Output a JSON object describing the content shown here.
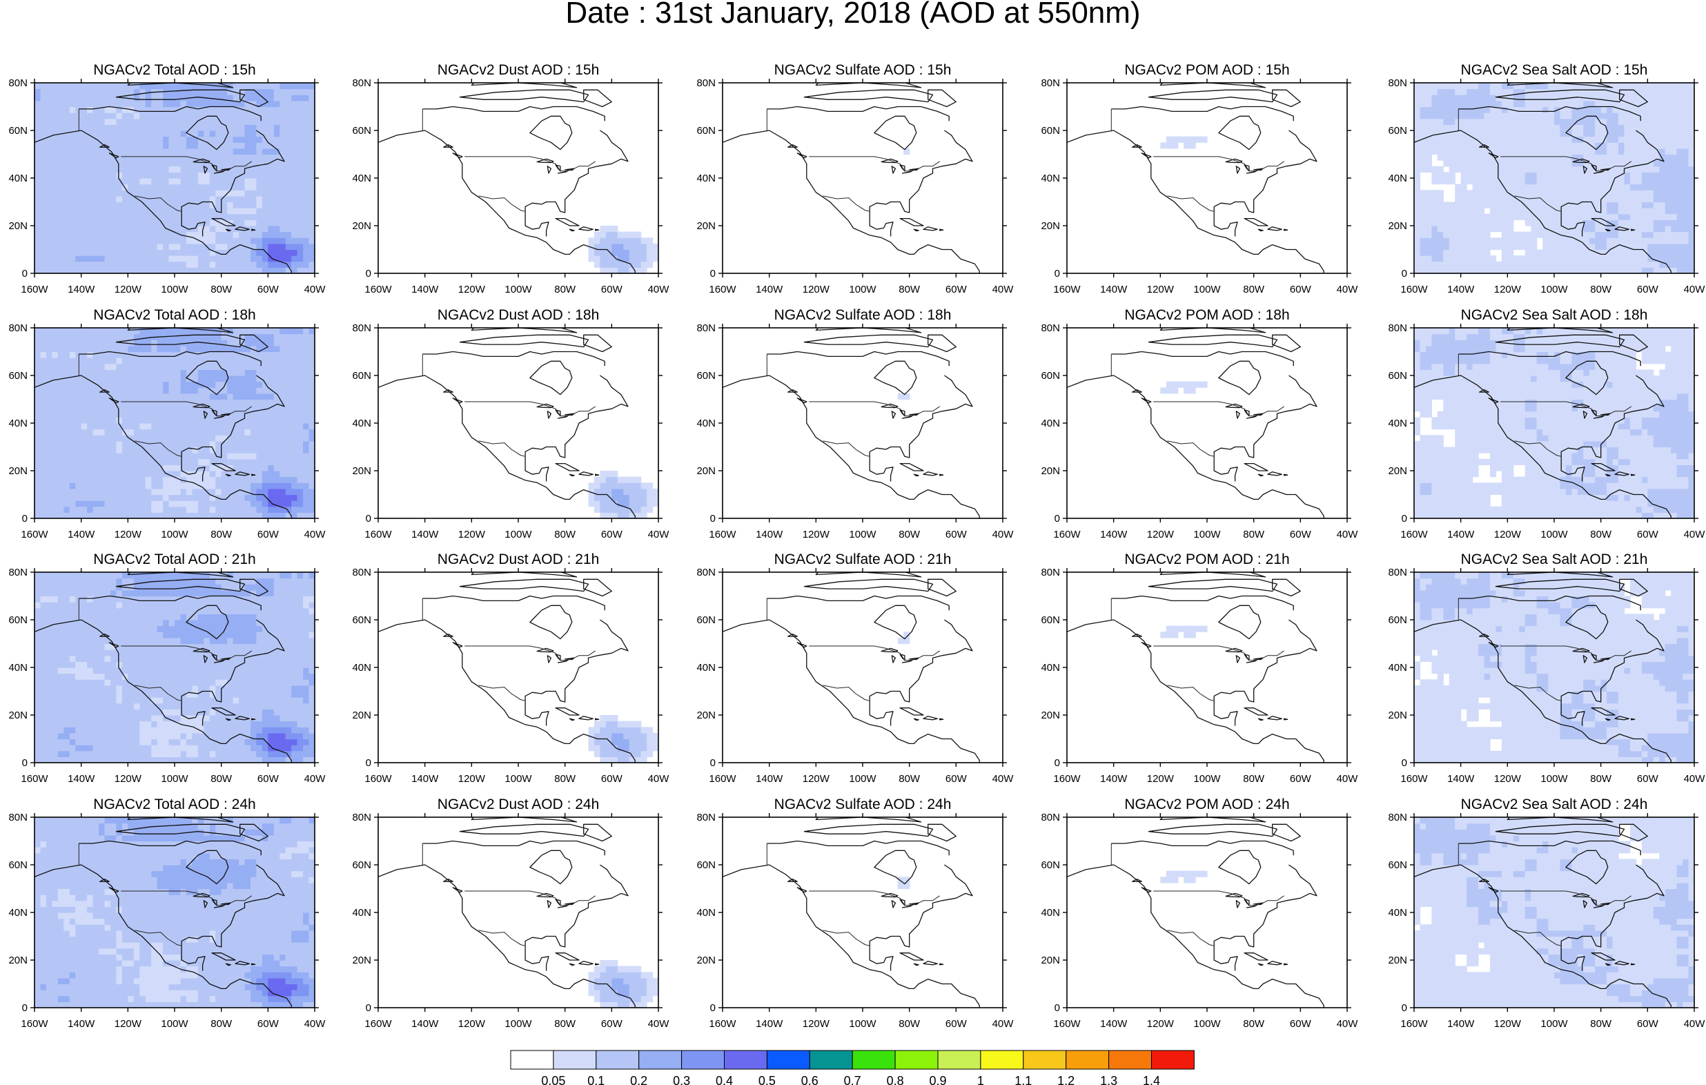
{
  "figure": {
    "title": "Date : 31st January, 2018 (AOD at 550nm)"
  },
  "panels": [
    {
      "title": "NGACv2 Total AOD : 15h",
      "field": "total",
      "hour": 15
    },
    {
      "title": "NGACv2 Dust AOD : 15h",
      "field": "dust",
      "hour": 15
    },
    {
      "title": "NGACv2 Sulfate AOD : 15h",
      "field": "sulfate",
      "hour": 15
    },
    {
      "title": "NGACv2 POM AOD : 15h",
      "field": "pom",
      "hour": 15
    },
    {
      "title": "NGACv2 Sea Salt AOD : 15h",
      "field": "seasalt",
      "hour": 15
    },
    {
      "title": "NGACv2 Total AOD : 18h",
      "field": "total",
      "hour": 18
    },
    {
      "title": "NGACv2 Dust AOD : 18h",
      "field": "dust",
      "hour": 18
    },
    {
      "title": "NGACv2 Sulfate AOD : 18h",
      "field": "sulfate",
      "hour": 18
    },
    {
      "title": "NGACv2 POM AOD : 18h",
      "field": "pom",
      "hour": 18
    },
    {
      "title": "NGACv2 Sea Salt AOD : 18h",
      "field": "seasalt",
      "hour": 18
    },
    {
      "title": "NGACv2 Total AOD : 21h",
      "field": "total",
      "hour": 21
    },
    {
      "title": "NGACv2 Dust AOD : 21h",
      "field": "dust",
      "hour": 21
    },
    {
      "title": "NGACv2 Sulfate AOD : 21h",
      "field": "sulfate",
      "hour": 21
    },
    {
      "title": "NGACv2 POM AOD : 21h",
      "field": "pom",
      "hour": 21
    },
    {
      "title": "NGACv2 Sea Salt AOD : 21h",
      "field": "seasalt",
      "hour": 21
    },
    {
      "title": "NGACv2 Total AOD : 24h",
      "field": "total",
      "hour": 24
    },
    {
      "title": "NGACv2 Dust AOD : 24h",
      "field": "dust",
      "hour": 24
    },
    {
      "title": "NGACv2 Sulfate AOD : 24h",
      "field": "sulfate",
      "hour": 24
    },
    {
      "title": "NGACv2 POM AOD : 24h",
      "field": "pom",
      "hour": 24
    },
    {
      "title": "NGACv2 Sea Salt  AOD : 24h",
      "field": "seasalt",
      "hour": 24
    }
  ],
  "axes": {
    "lon_ticks": [
      "160W",
      "140W",
      "120W",
      "100W",
      "80W",
      "60W",
      "40W"
    ],
    "lon_values": [
      -160,
      -140,
      -120,
      -100,
      -80,
      -60,
      -40
    ],
    "lat_ticks": [
      "0",
      "20N",
      "40N",
      "60N",
      "80N"
    ],
    "lat_values": [
      0,
      20,
      40,
      60,
      80
    ],
    "lon_range": [
      -160,
      -40
    ],
    "lat_range": [
      0,
      80
    ]
  },
  "colorbar": {
    "labels": [
      "0.05",
      "0.1",
      "0.2",
      "0.3",
      "0.4",
      "0.5",
      "0.6",
      "0.7",
      "0.8",
      "0.9",
      "1",
      "1.1",
      "1.2",
      "1.3",
      "1.4"
    ],
    "colors": [
      "#ffffff",
      "#d2dcfa",
      "#b5c6f6",
      "#96aef4",
      "#7f95f3",
      "#6a6af0",
      "#0a5bff",
      "#059393",
      "#39e20a",
      "#8cf20a",
      "#c8f054",
      "#f8f81a",
      "#f7c81a",
      "#f79e0a",
      "#f7780a",
      "#f21a0a"
    ]
  }
}
